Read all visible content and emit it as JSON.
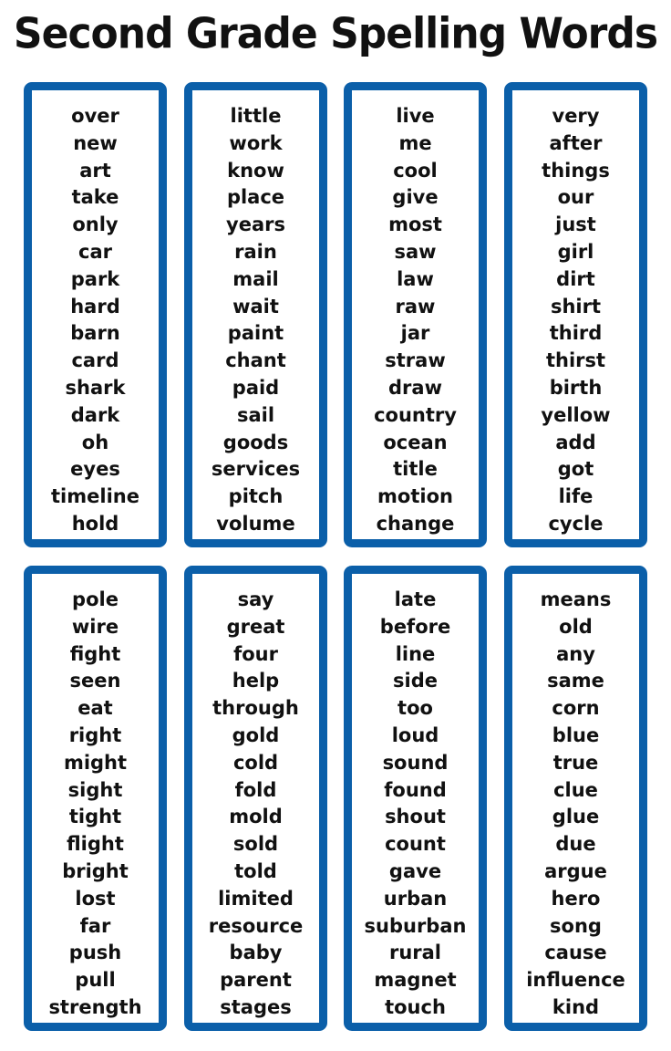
{
  "title": "Second Grade Spelling Words",
  "border_color": "#0b5fa9",
  "columns": [
    {
      "words": [
        "over",
        "new",
        "art",
        "take",
        "only",
        "car",
        "park",
        "hard",
        "barn",
        "card",
        "shark",
        "dark",
        "oh",
        "eyes",
        "timeline",
        "hold"
      ]
    },
    {
      "words": [
        "little",
        "work",
        "know",
        "place",
        "years",
        "rain",
        "mail",
        "wait",
        "paint",
        "chant",
        "paid",
        "sail",
        "goods",
        "services",
        "pitch",
        "volume"
      ]
    },
    {
      "words": [
        "live",
        "me",
        "cool",
        "give",
        "most",
        "saw",
        "law",
        "raw",
        "jar",
        "straw",
        "draw",
        "country",
        "ocean",
        "title",
        "motion",
        "change"
      ]
    },
    {
      "words": [
        "very",
        "after",
        "things",
        "our",
        "just",
        "girl",
        "dirt",
        "shirt",
        "third",
        "thirst",
        "birth",
        "yellow",
        "add",
        "got",
        "life",
        "cycle"
      ]
    },
    {
      "words": [
        "pole",
        "wire",
        "fight",
        "seen",
        "eat",
        "right",
        "might",
        "sight",
        "tight",
        "flight",
        "bright",
        "lost",
        "far",
        "push",
        "pull",
        "strength"
      ]
    },
    {
      "words": [
        "say",
        "great",
        "four",
        "help",
        "through",
        "gold",
        "cold",
        "fold",
        "mold",
        "sold",
        "told",
        "limited",
        "resource",
        "baby",
        "parent",
        "stages"
      ]
    },
    {
      "words": [
        "late",
        "before",
        "line",
        "side",
        "too",
        "loud",
        "sound",
        "found",
        "shout",
        "count",
        "gave",
        "urban",
        "suburban",
        "rural",
        "magnet",
        "touch"
      ]
    },
    {
      "words": [
        "means",
        "old",
        "any",
        "same",
        "corn",
        "blue",
        "true",
        "clue",
        "glue",
        "due",
        "argue",
        "hero",
        "song",
        "cause",
        "influence",
        "kind"
      ]
    }
  ]
}
